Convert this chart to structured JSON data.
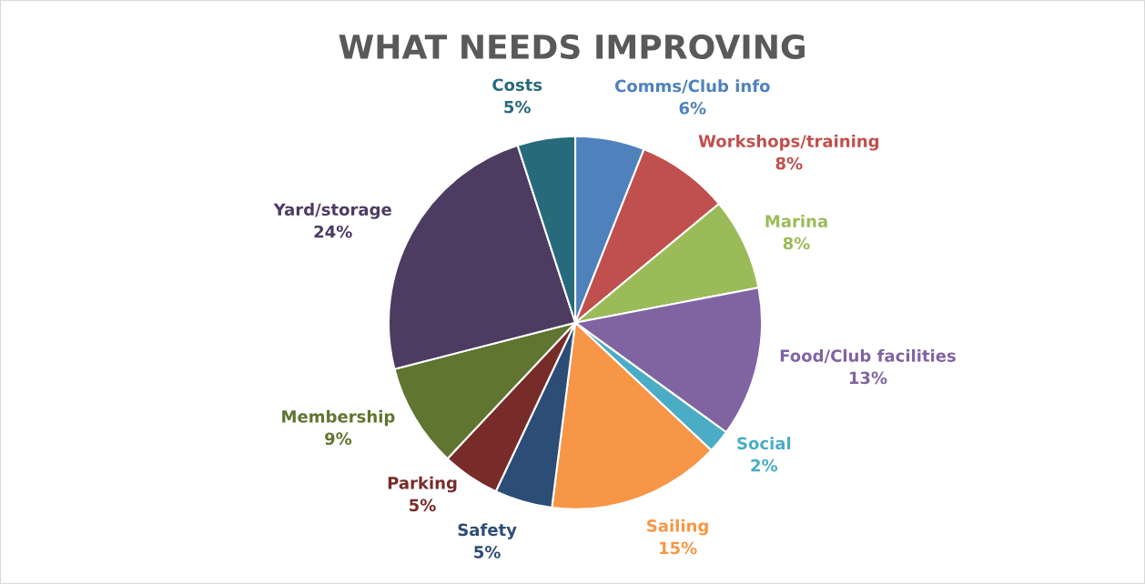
{
  "chart_data": {
    "type": "pie",
    "title": "WHAT NEEDS IMPROVING",
    "categories": [
      "Comms/Club info",
      "Workshops/training",
      "Marina",
      "Food/Club facilities",
      "Social",
      "Sailing",
      "Safety",
      "Parking",
      "Membership",
      "Yard/storage",
      "Costs"
    ],
    "values": [
      6,
      8,
      8,
      13,
      2,
      15,
      5,
      5,
      9,
      24,
      5
    ],
    "value_labels": [
      "6%",
      "8%",
      "8%",
      "13%",
      "2%",
      "15%",
      "5%",
      "5%",
      "9%",
      "24%",
      "5%"
    ],
    "colors": [
      "#4f81bd",
      "#c0504d",
      "#9bbb59",
      "#8064a2",
      "#4bacc6",
      "#f79646",
      "#2c4d75",
      "#772c2a",
      "#5f7530",
      "#4d3b62",
      "#276a7c"
    ],
    "legend": false
  }
}
